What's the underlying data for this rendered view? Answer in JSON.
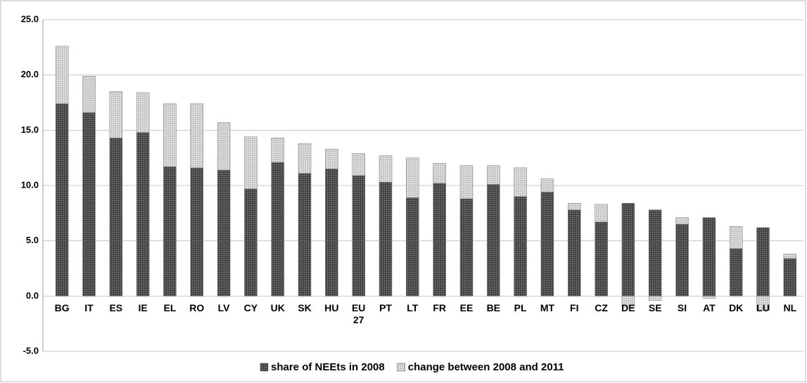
{
  "chart_data": {
    "type": "stacked_bar",
    "categories": [
      "BG",
      "IT",
      "ES",
      "IE",
      "EL",
      "RO",
      "LV",
      "CY",
      "UK",
      "SK",
      "HU",
      "EU 27",
      "PT",
      "LT",
      "FR",
      "EE",
      "BE",
      "PL",
      "MT",
      "FI",
      "CZ",
      "DE",
      "SE",
      "SI",
      "AT",
      "DK",
      "LU",
      "NL"
    ],
    "series": [
      {
        "name": "share of NEEts in 2008",
        "color": "#4d4d4d",
        "values": [
          17.4,
          16.6,
          14.3,
          14.8,
          11.7,
          11.6,
          11.4,
          9.7,
          12.1,
          11.1,
          11.5,
          10.9,
          10.3,
          8.9,
          10.2,
          8.8,
          10.1,
          9.0,
          9.4,
          7.8,
          6.7,
          8.4,
          7.8,
          6.5,
          7.1,
          4.3,
          6.2,
          3.4
        ]
      },
      {
        "name": "change between 2008 and 2011",
        "color": "#d0d0d0",
        "values": [
          5.2,
          3.3,
          4.2,
          3.6,
          5.7,
          5.8,
          4.3,
          4.7,
          2.2,
          2.7,
          1.8,
          2.0,
          2.4,
          3.6,
          1.8,
          3.0,
          1.7,
          2.6,
          1.2,
          0.6,
          1.6,
          -1.0,
          -0.4,
          0.6,
          -0.2,
          2.0,
          -1.3,
          0.4
        ]
      }
    ],
    "ylim": [
      -5,
      25
    ],
    "yticks": [
      {
        "value": -5,
        "label": "-5.0"
      },
      {
        "value": 0,
        "label": "0.0"
      },
      {
        "value": 5,
        "label": "5.0"
      },
      {
        "value": 10,
        "label": "10.0"
      },
      {
        "value": 15,
        "label": "15.0"
      },
      {
        "value": 20,
        "label": "20.0"
      },
      {
        "value": 25,
        "label": "25.0"
      }
    ],
    "grid": true
  }
}
